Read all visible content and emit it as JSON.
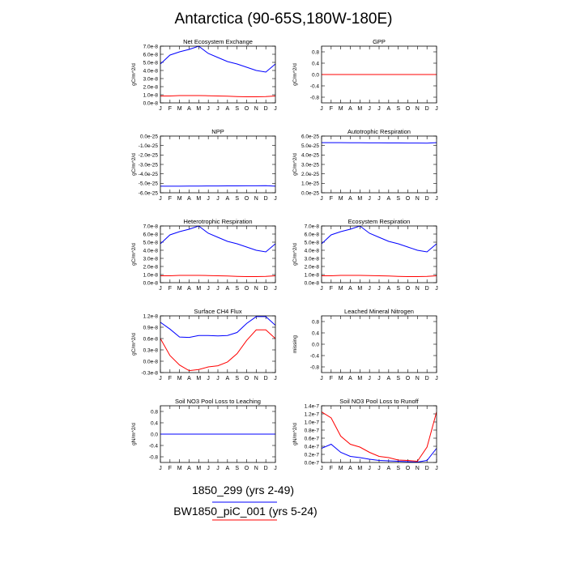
{
  "figure": {
    "title": "Antarctica (90-65S,180W-180E)",
    "legend": [
      {
        "label": "1850_299 (yrs 2-49)",
        "color": "#0000ff"
      },
      {
        "label": "BW1850_piC_001 (yrs 5-24)",
        "color": "#ff0000"
      }
    ]
  },
  "chart_data": [
    {
      "type": "line",
      "title": "Net Ecosystem Exchange",
      "ylabel": "gC/m^2/d",
      "categories": [
        "J",
        "F",
        "M",
        "A",
        "M",
        "J",
        "J",
        "A",
        "S",
        "O",
        "N",
        "D",
        "J"
      ],
      "ylim": [
        0,
        7e-08
      ],
      "yticks": [
        0,
        1e-08,
        2e-08,
        3e-08,
        4e-08,
        5e-08,
        6e-08,
        7e-08
      ],
      "ytick_labels": [
        "0.0e-8",
        "1.0e-8",
        "2.0e-8",
        "3.0e-8",
        "4.0e-8",
        "5.0e-8",
        "6.0e-8",
        "7.0e-8"
      ],
      "series": [
        {
          "name": "1850_299 (yrs 2-49)",
          "color": "#0000ff",
          "values": [
            4.8e-08,
            5.9e-08,
            6.3e-08,
            6.6e-08,
            7e-08,
            6.1e-08,
            5.6e-08,
            5.1e-08,
            4.8e-08,
            4.4e-08,
            4e-08,
            3.8e-08,
            4.8e-08
          ]
        },
        {
          "name": "BW1850_piC_001 (yrs 5-24)",
          "color": "#ff0000",
          "values": [
            8.5e-09,
            8.5e-09,
            9e-09,
            9e-09,
            9e-09,
            8.8e-09,
            8.5e-09,
            8.2e-09,
            7.8e-09,
            7.5e-09,
            7.5e-09,
            7.8e-09,
            8.5e-09
          ]
        }
      ]
    },
    {
      "type": "line",
      "title": "GPP",
      "ylabel": "gC/m^2/d",
      "categories": [
        "J",
        "F",
        "M",
        "A",
        "M",
        "J",
        "J",
        "A",
        "S",
        "O",
        "N",
        "D",
        "J"
      ],
      "ylim": [
        -1.0,
        1.0
      ],
      "yticks": [
        -0.8,
        -0.4,
        0,
        0.4,
        0.8
      ],
      "ytick_labels": [
        "-0.8",
        "-0.4",
        "0.0",
        "0.4",
        "0.8"
      ],
      "series": [
        {
          "name": "1850_299 (yrs 2-49)",
          "color": "#0000ff",
          "values": [
            0,
            0,
            0,
            0,
            0,
            0,
            0,
            0,
            0,
            0,
            0,
            0,
            0
          ]
        },
        {
          "name": "BW1850_piC_001 (yrs 5-24)",
          "color": "#ff0000",
          "values": [
            0,
            0,
            0,
            0,
            0,
            0,
            0,
            0,
            0,
            0,
            0,
            0,
            0
          ]
        }
      ]
    },
    {
      "type": "line",
      "title": "NPP",
      "ylabel": "gC/m^2/d",
      "categories": [
        "J",
        "F",
        "M",
        "A",
        "M",
        "J",
        "J",
        "A",
        "S",
        "O",
        "N",
        "D",
        "J"
      ],
      "ylim": [
        -6e-25,
        0
      ],
      "yticks": [
        -6e-25,
        -5e-25,
        -4e-25,
        -3e-25,
        -2e-25,
        -1e-25,
        0
      ],
      "ytick_labels": [
        "-6.0e-25",
        "-5.0e-25",
        "-4.0e-25",
        "-3.0e-25",
        "-2.0e-25",
        "-1.0e-25",
        "0.0e-25"
      ],
      "series": [
        {
          "name": "1850_299 (yrs 2-49)",
          "color": "#0000ff",
          "values": [
            -5.3e-25,
            -5.3e-25,
            -5.3e-25,
            -5.29e-25,
            -5.29e-25,
            -5.28e-25,
            -5.28e-25,
            -5.27e-25,
            -5.27e-25,
            -5.26e-25,
            -5.26e-25,
            -5.25e-25,
            -5.3e-25
          ]
        }
      ]
    },
    {
      "type": "line",
      "title": "Autotrophic Respiration",
      "ylabel": "gC/m^2/d",
      "categories": [
        "J",
        "F",
        "M",
        "A",
        "M",
        "J",
        "J",
        "A",
        "S",
        "O",
        "N",
        "D",
        "J"
      ],
      "ylim": [
        0,
        6e-25
      ],
      "yticks": [
        0,
        1e-25,
        2e-25,
        3e-25,
        4e-25,
        5e-25,
        6e-25
      ],
      "ytick_labels": [
        "0.0e-25",
        "1.0e-25",
        "2.0e-25",
        "3.0e-25",
        "4.0e-25",
        "5.0e-25",
        "6.0e-25"
      ],
      "series": [
        {
          "name": "1850_299 (yrs 2-49)",
          "color": "#0000ff",
          "values": [
            5.3e-25,
            5.3e-25,
            5.3e-25,
            5.29e-25,
            5.29e-25,
            5.28e-25,
            5.28e-25,
            5.27e-25,
            5.27e-25,
            5.26e-25,
            5.26e-25,
            5.25e-25,
            5.3e-25
          ]
        }
      ]
    },
    {
      "type": "line",
      "title": "Heterotrophic Respiration",
      "ylabel": "gC/m^2/d",
      "categories": [
        "J",
        "F",
        "M",
        "A",
        "M",
        "J",
        "J",
        "A",
        "S",
        "O",
        "N",
        "D",
        "J"
      ],
      "ylim": [
        0,
        7e-08
      ],
      "yticks": [
        0,
        1e-08,
        2e-08,
        3e-08,
        4e-08,
        5e-08,
        6e-08,
        7e-08
      ],
      "ytick_labels": [
        "0.0e-8",
        "1.0e-8",
        "2.0e-8",
        "3.0e-8",
        "4.0e-8",
        "5.0e-8",
        "6.0e-8",
        "7.0e-8"
      ],
      "series": [
        {
          "name": "1850_299 (yrs 2-49)",
          "color": "#0000ff",
          "values": [
            4.8e-08,
            5.9e-08,
            6.3e-08,
            6.6e-08,
            7e-08,
            6.1e-08,
            5.6e-08,
            5.1e-08,
            4.8e-08,
            4.4e-08,
            4e-08,
            3.8e-08,
            4.8e-08
          ]
        },
        {
          "name": "BW1850_piC_001 (yrs 5-24)",
          "color": "#ff0000",
          "values": [
            8.5e-09,
            8.5e-09,
            9e-09,
            9e-09,
            9e-09,
            8.8e-09,
            8.5e-09,
            8.2e-09,
            7.8e-09,
            7.5e-09,
            7.5e-09,
            7.8e-09,
            8.5e-09
          ]
        }
      ]
    },
    {
      "type": "line",
      "title": "Ecosystem Respiration",
      "ylabel": "gC/m^2/d",
      "categories": [
        "J",
        "F",
        "M",
        "A",
        "M",
        "J",
        "J",
        "A",
        "S",
        "O",
        "N",
        "D",
        "J"
      ],
      "ylim": [
        0,
        7e-08
      ],
      "yticks": [
        0,
        1e-08,
        2e-08,
        3e-08,
        4e-08,
        5e-08,
        6e-08,
        7e-08
      ],
      "ytick_labels": [
        "0.0e-8",
        "1.0e-8",
        "2.0e-8",
        "3.0e-8",
        "4.0e-8",
        "5.0e-8",
        "6.0e-8",
        "7.0e-8"
      ],
      "series": [
        {
          "name": "1850_299 (yrs 2-49)",
          "color": "#0000ff",
          "values": [
            4.8e-08,
            5.9e-08,
            6.3e-08,
            6.6e-08,
            7e-08,
            6.1e-08,
            5.6e-08,
            5.1e-08,
            4.8e-08,
            4.4e-08,
            4e-08,
            3.8e-08,
            4.8e-08
          ]
        },
        {
          "name": "BW1850_piC_001 (yrs 5-24)",
          "color": "#ff0000",
          "values": [
            8.5e-09,
            8.5e-09,
            9e-09,
            9e-09,
            9e-09,
            8.8e-09,
            8.5e-09,
            8.2e-09,
            7.8e-09,
            7.5e-09,
            7.5e-09,
            7.8e-09,
            8.5e-09
          ]
        }
      ]
    },
    {
      "type": "line",
      "title": "Surface CH4 Flux",
      "ylabel": "gC/m^2/d",
      "categories": [
        "J",
        "F",
        "M",
        "A",
        "M",
        "J",
        "J",
        "A",
        "S",
        "O",
        "N",
        "D",
        "J"
      ],
      "ylim": [
        -3e-09,
        1.2e-08
      ],
      "yticks": [
        -3e-09,
        0,
        3e-09,
        6e-09,
        9e-09,
        1.2e-08
      ],
      "ytick_labels": [
        "-0.3e-8",
        "0.0e-8",
        "0.3e-8",
        "0.6e-8",
        "0.9e-8",
        "1.2e-8"
      ],
      "series": [
        {
          "name": "1850_299 (yrs 2-49)",
          "color": "#0000ff",
          "values": [
            1.03e-08,
            8.5e-09,
            6.4e-09,
            6.3e-09,
            6.8e-09,
            6.8e-09,
            6.7e-09,
            6.8e-09,
            7.6e-09,
            1e-08,
            1.18e-08,
            1.18e-08,
            9.5e-09
          ]
        },
        {
          "name": "BW1850_piC_001 (yrs 5-24)",
          "color": "#ff0000",
          "values": [
            6e-09,
            1.5e-09,
            -1e-09,
            -2.5e-09,
            -2.2e-09,
            -1.5e-09,
            -1.2e-09,
            -2e-10,
            2e-09,
            5.5e-09,
            8.3e-09,
            8.3e-09,
            6e-09
          ]
        }
      ]
    },
    {
      "type": "line",
      "title": "Leached Mineral Nitrogen",
      "ylabel": "missing",
      "categories": [
        "J",
        "F",
        "M",
        "A",
        "M",
        "J",
        "J",
        "A",
        "S",
        "O",
        "N",
        "D",
        "J"
      ],
      "ylim": [
        -1.0,
        1.0
      ],
      "yticks": [
        -0.8,
        -0.4,
        0,
        0.4,
        0.8
      ],
      "ytick_labels": [
        "-0.8",
        "-0.4",
        "0.0",
        "0.4",
        "0.8"
      ],
      "series": []
    },
    {
      "type": "line",
      "title": "Soil NO3 Pool Loss to Leaching",
      "ylabel": "gN/m^2/d",
      "categories": [
        "J",
        "F",
        "M",
        "A",
        "M",
        "J",
        "J",
        "A",
        "S",
        "O",
        "N",
        "D",
        "J"
      ],
      "ylim": [
        -1.0,
        1.0
      ],
      "yticks": [
        -0.8,
        -0.4,
        0,
        0.4,
        0.8
      ],
      "ytick_labels": [
        "-0.8",
        "-0.4",
        "0.0",
        "0.4",
        "0.8"
      ],
      "series": [
        {
          "name": "BW1850_piC_001 (yrs 5-24)",
          "color": "#ff0000",
          "values": [
            0,
            0,
            0,
            0,
            0,
            0,
            0,
            0,
            0,
            0,
            0,
            0,
            0
          ]
        },
        {
          "name": "1850_299 (yrs 2-49)",
          "color": "#0000ff",
          "values": [
            0,
            0,
            0,
            0,
            0,
            0,
            0,
            0,
            0,
            0,
            0,
            0,
            0
          ]
        }
      ]
    },
    {
      "type": "line",
      "title": "Soil NO3 Pool Loss to Runoff",
      "ylabel": "gN/m^2/d",
      "categories": [
        "J",
        "F",
        "M",
        "A",
        "M",
        "J",
        "J",
        "A",
        "S",
        "O",
        "N",
        "D",
        "J"
      ],
      "ylim": [
        0,
        1.4e-07
      ],
      "yticks": [
        0,
        2e-08,
        4e-08,
        6e-08,
        8e-08,
        1e-07,
        1.2e-07,
        1.4e-07
      ],
      "ytick_labels": [
        "0.0e-7",
        "0.2e-7",
        "0.4e-7",
        "0.6e-7",
        "0.8e-7",
        "1.0e-7",
        "1.2e-7",
        "1.4e-7"
      ],
      "series": [
        {
          "name": "1850_299 (yrs 2-49)",
          "color": "#0000ff",
          "values": [
            3.5e-08,
            4.5e-08,
            2.5e-08,
            1.5e-08,
            1.2e-08,
            8e-09,
            5e-09,
            4e-09,
            3e-09,
            2e-09,
            1e-09,
            5e-09,
            3.5e-08
          ]
        },
        {
          "name": "BW1850_piC_001 (yrs 5-24)",
          "color": "#ff0000",
          "values": [
            1.25e-07,
            1.1e-07,
            6.5e-08,
            4.5e-08,
            3.8e-08,
            2.5e-08,
            1.5e-08,
            1.2e-08,
            6e-09,
            5e-09,
            3e-09,
            3.8e-08,
            1.25e-07
          ]
        }
      ]
    }
  ]
}
